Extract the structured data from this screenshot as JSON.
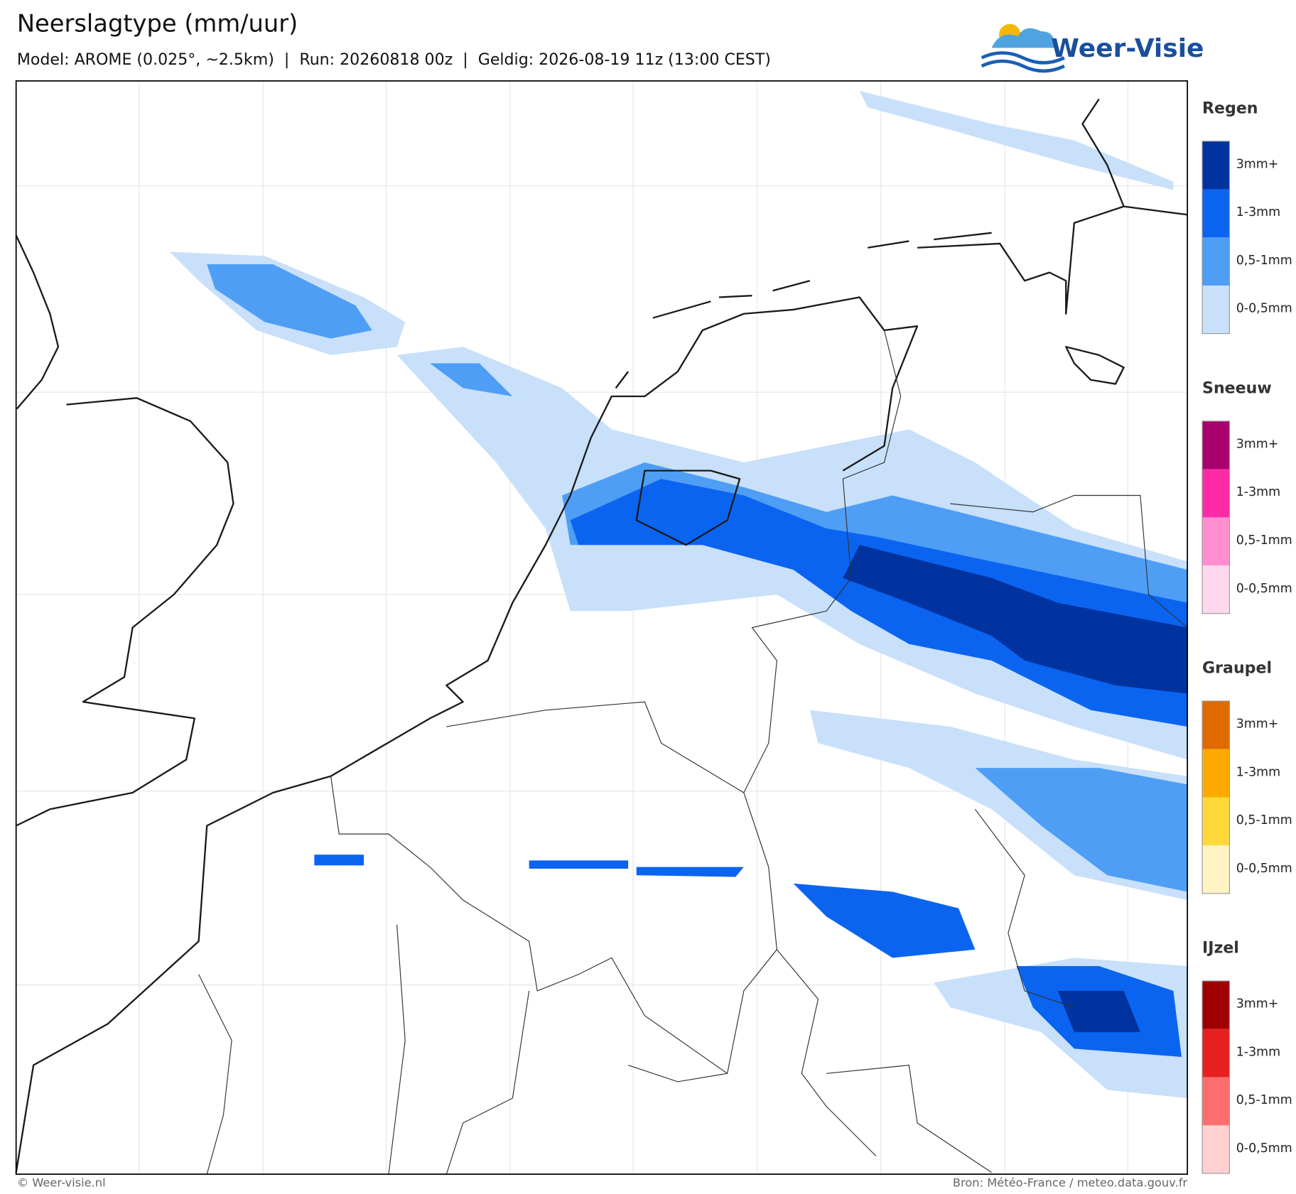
{
  "header": {
    "title": "Neerslagtype (mm/uur)",
    "subtitle": "Model: AROME (0.025°, ~2.5km)  |  Run: 20260818 00z  |  Geldig: 2026-08-19 11z (13:00 CEST)",
    "logo": "Weer-Visie"
  },
  "legend": [
    {
      "title": "Regen",
      "items": [
        {
          "label": "3mm+",
          "color": "#0033a0"
        },
        {
          "label": "1-3mm",
          "color": "#0a64f0"
        },
        {
          "label": "0,5-1mm",
          "color": "#4f9ef5"
        },
        {
          "label": "0-0,5mm",
          "color": "#c8e0fa"
        }
      ]
    },
    {
      "title": "Sneeuw",
      "items": [
        {
          "label": "3mm+",
          "color": "#a8006e"
        },
        {
          "label": "1-3mm",
          "color": "#ff2aa8"
        },
        {
          "label": "0,5-1mm",
          "color": "#ff8fd0"
        },
        {
          "label": "0-0,5mm",
          "color": "#ffd8ee"
        }
      ]
    },
    {
      "title": "Graupel",
      "items": [
        {
          "label": "3mm+",
          "color": "#e06a00"
        },
        {
          "label": "1-3mm",
          "color": "#ffaa00"
        },
        {
          "label": "0,5-1mm",
          "color": "#ffd93a"
        },
        {
          "label": "0-0,5mm",
          "color": "#fff3c4"
        }
      ]
    },
    {
      "title": "IJzel",
      "items": [
        {
          "label": "3mm+",
          "color": "#a00000"
        },
        {
          "label": "1-3mm",
          "color": "#e82020"
        },
        {
          "label": "0,5-1mm",
          "color": "#ff6e6e"
        },
        {
          "label": "0-0,5mm",
          "color": "#ffd0d0"
        }
      ]
    }
  ],
  "footer": {
    "left": "© Weer-visie.nl",
    "right": "Bron: Météo-France / meteo.data.gouv.fr"
  }
}
